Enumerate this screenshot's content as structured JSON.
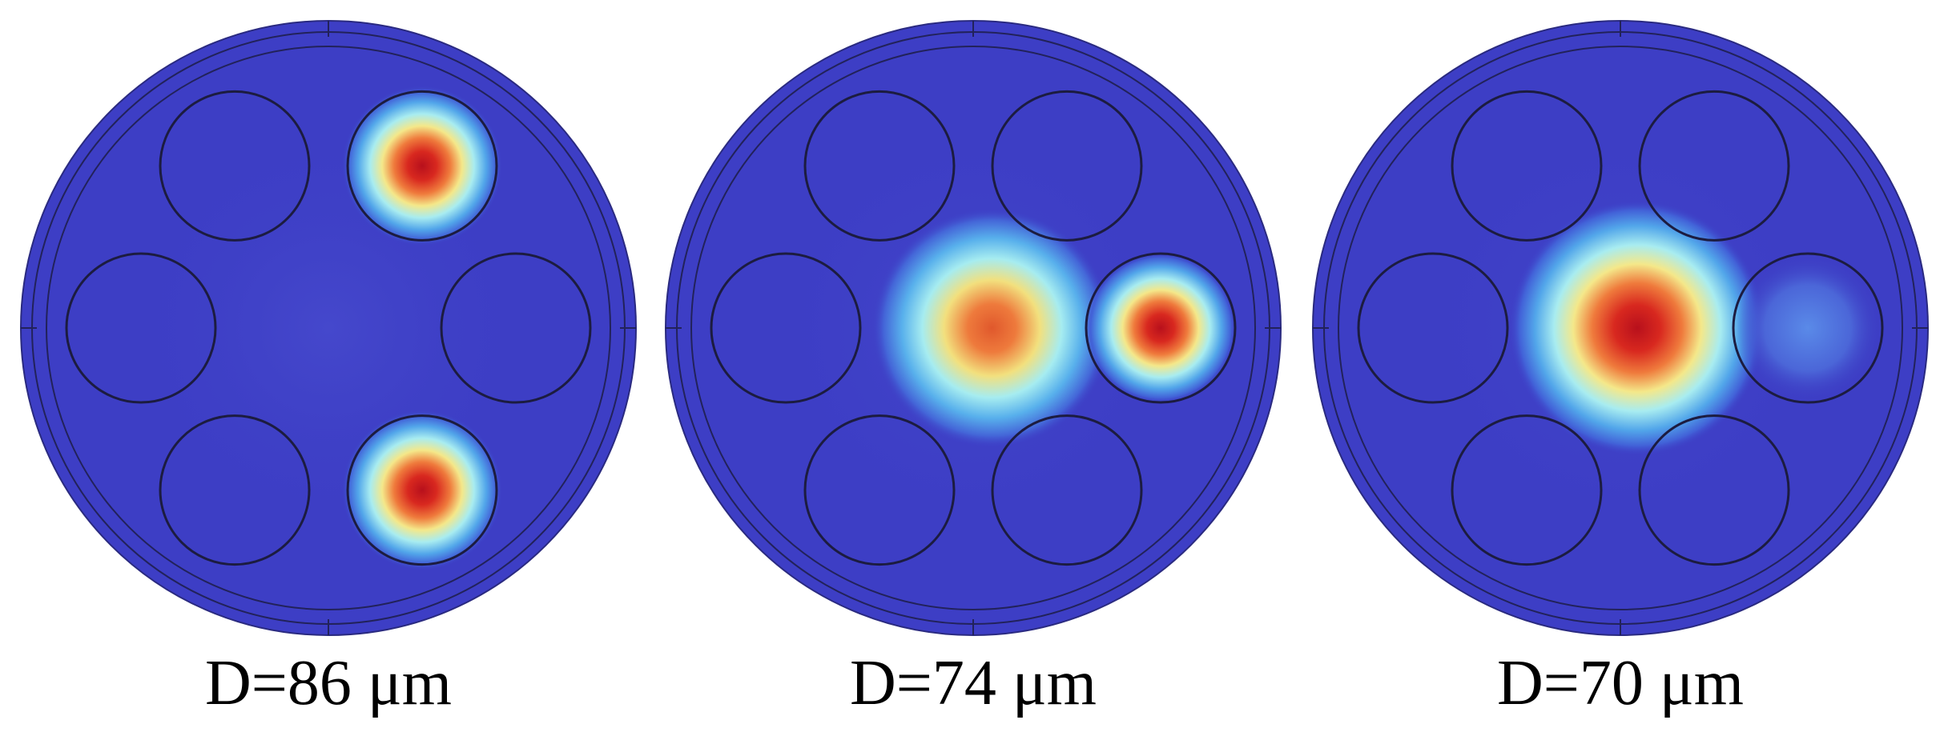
{
  "panels": [
    {
      "label": "D=86 μm"
    },
    {
      "label": "D=74 μm"
    },
    {
      "label": "D=70 μm"
    }
  ]
}
